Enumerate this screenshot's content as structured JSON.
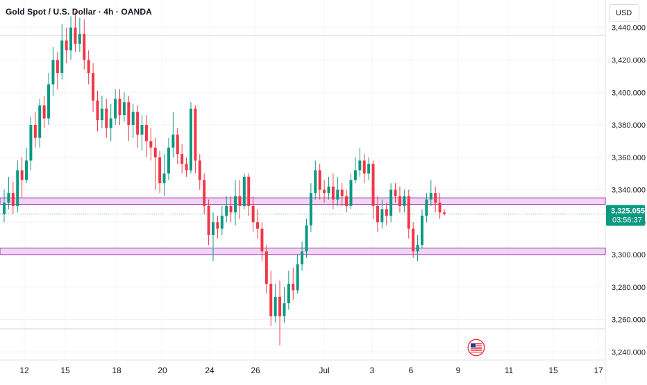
{
  "header": {
    "title": "Gold Spot / U.S. Dollar · 4h · OANDA",
    "currency": "USD"
  },
  "price_badge": {
    "price": "3,325.055",
    "countdown": "03:56:37"
  },
  "colors": {
    "up": "#089981",
    "down": "#f23645",
    "zone_fill": "#e9c9ef",
    "zone_border": "#9c27b0",
    "badge": "#089981"
  },
  "event_icon": "us-flag-icon",
  "chart_data": {
    "type": "candlestick",
    "x_tick_labels": [
      "12",
      "15",
      "18",
      "20",
      "24",
      "26",
      "Jul",
      "3",
      "6",
      "9",
      "11",
      "15",
      "17"
    ],
    "y_tick_labels": [
      "3,240.000",
      "3,260.000",
      "3,280.000",
      "3,300.000",
      "3,320.000",
      "3,340.000",
      "3,360.000",
      "3,380.000",
      "3,400.000",
      "3,420.000",
      "3,440.000"
    ],
    "y_ticks": [
      3240,
      3260,
      3280,
      3300,
      3320,
      3340,
      3360,
      3380,
      3400,
      3420,
      3440
    ],
    "ylim": [
      3235,
      3457
    ],
    "last_price": 3325.055,
    "zones": [
      {
        "low": 3331,
        "high": 3335
      },
      {
        "low": 3300,
        "high": 3304
      }
    ],
    "candles": [
      [
        3325,
        3332,
        3340,
        3320
      ],
      [
        3332,
        3338,
        3348,
        3328
      ],
      [
        3338,
        3330,
        3345,
        3325
      ],
      [
        3330,
        3352,
        3358,
        3326
      ],
      [
        3352,
        3346,
        3360,
        3335
      ],
      [
        3346,
        3358,
        3366,
        3344
      ],
      [
        3358,
        3380,
        3385,
        3352
      ],
      [
        3380,
        3372,
        3388,
        3366
      ],
      [
        3372,
        3392,
        3396,
        3366
      ],
      [
        3392,
        3384,
        3398,
        3378
      ],
      [
        3384,
        3405,
        3412,
        3380
      ],
      [
        3405,
        3420,
        3428,
        3398
      ],
      [
        3420,
        3412,
        3425,
        3402
      ],
      [
        3412,
        3432,
        3442,
        3408
      ],
      [
        3432,
        3426,
        3440,
        3418
      ],
      [
        3426,
        3440,
        3447,
        3420
      ],
      [
        3440,
        3430,
        3450,
        3425
      ],
      [
        3430,
        3436,
        3446,
        3425
      ],
      [
        3436,
        3420,
        3445,
        3414
      ],
      [
        3420,
        3412,
        3426,
        3405
      ],
      [
        3412,
        3395,
        3418,
        3388
      ],
      [
        3395,
        3383,
        3401,
        3376
      ],
      [
        3383,
        3390,
        3398,
        3378
      ],
      [
        3390,
        3378,
        3396,
        3372
      ],
      [
        3378,
        3384,
        3393,
        3370
      ],
      [
        3384,
        3396,
        3402,
        3380
      ],
      [
        3396,
        3386,
        3402,
        3380
      ],
      [
        3386,
        3394,
        3400,
        3382
      ],
      [
        3394,
        3380,
        3398,
        3370
      ],
      [
        3380,
        3388,
        3393,
        3372
      ],
      [
        3388,
        3374,
        3392,
        3366
      ],
      [
        3374,
        3380,
        3386,
        3364
      ],
      [
        3380,
        3370,
        3386,
        3360
      ],
      [
        3370,
        3366,
        3378,
        3358
      ],
      [
        3366,
        3360,
        3372,
        3340
      ],
      [
        3360,
        3344,
        3364,
        3338
      ],
      [
        3344,
        3350,
        3362,
        3336
      ],
      [
        3350,
        3366,
        3372,
        3346
      ],
      [
        3366,
        3374,
        3388,
        3360
      ],
      [
        3374,
        3362,
        3378,
        3356
      ],
      [
        3362,
        3356,
        3368,
        3350
      ],
      [
        3356,
        3352,
        3360,
        3348
      ],
      [
        3352,
        3390,
        3394,
        3350
      ],
      [
        3390,
        3358,
        3392,
        3350
      ],
      [
        3358,
        3346,
        3362,
        3340
      ],
      [
        3346,
        3330,
        3350,
        3325
      ],
      [
        3330,
        3312,
        3334,
        3306
      ],
      [
        3312,
        3320,
        3326,
        3296
      ],
      [
        3320,
        3316,
        3324,
        3310
      ],
      [
        3316,
        3324,
        3330,
        3312
      ],
      [
        3324,
        3330,
        3336,
        3320
      ],
      [
        3330,
        3326,
        3336,
        3320
      ],
      [
        3326,
        3336,
        3346,
        3318
      ],
      [
        3336,
        3330,
        3346,
        3322
      ],
      [
        3330,
        3348,
        3350,
        3328
      ],
      [
        3348,
        3330,
        3350,
        3324
      ],
      [
        3330,
        3320,
        3336,
        3314
      ],
      [
        3320,
        3316,
        3328,
        3310
      ],
      [
        3316,
        3302,
        3320,
        3296
      ],
      [
        3302,
        3282,
        3306,
        3276
      ],
      [
        3282,
        3262,
        3290,
        3256
      ],
      [
        3262,
        3274,
        3282,
        3258
      ],
      [
        3274,
        3262,
        3284,
        3244
      ],
      [
        3262,
        3270,
        3280,
        3258
      ],
      [
        3270,
        3282,
        3290,
        3266
      ],
      [
        3282,
        3278,
        3292,
        3272
      ],
      [
        3278,
        3294,
        3300,
        3276
      ],
      [
        3294,
        3302,
        3308,
        3290
      ],
      [
        3302,
        3318,
        3322,
        3298
      ],
      [
        3318,
        3338,
        3344,
        3314
      ],
      [
        3338,
        3352,
        3358,
        3334
      ],
      [
        3352,
        3340,
        3356,
        3334
      ],
      [
        3340,
        3338,
        3346,
        3332
      ],
      [
        3338,
        3342,
        3348,
        3334
      ],
      [
        3342,
        3334,
        3350,
        3328
      ],
      [
        3334,
        3340,
        3348,
        3330
      ],
      [
        3340,
        3336,
        3344,
        3330
      ],
      [
        3336,
        3330,
        3340,
        3326
      ],
      [
        3330,
        3346,
        3350,
        3328
      ],
      [
        3346,
        3352,
        3360,
        3344
      ],
      [
        3352,
        3358,
        3366,
        3348
      ],
      [
        3358,
        3350,
        3362,
        3344
      ],
      [
        3350,
        3356,
        3360,
        3346
      ],
      [
        3356,
        3330,
        3358,
        3322
      ],
      [
        3330,
        3320,
        3336,
        3314
      ],
      [
        3320,
        3328,
        3334,
        3316
      ],
      [
        3328,
        3324,
        3332,
        3318
      ],
      [
        3324,
        3340,
        3344,
        3320
      ],
      [
        3340,
        3336,
        3344,
        3332
      ],
      [
        3336,
        3330,
        3342,
        3326
      ],
      [
        3330,
        3336,
        3340,
        3326
      ],
      [
        3336,
        3316,
        3340,
        3310
      ],
      [
        3316,
        3302,
        3320,
        3298
      ],
      [
        3302,
        3306,
        3312,
        3296
      ],
      [
        3306,
        3324,
        3328,
        3304
      ],
      [
        3324,
        3334,
        3338,
        3320
      ],
      [
        3334,
        3338,
        3346,
        3330
      ],
      [
        3338,
        3332,
        3342,
        3326
      ],
      [
        3332,
        3326,
        3338,
        3322
      ],
      [
        3326,
        3325.055,
        3328,
        3324
      ]
    ]
  }
}
